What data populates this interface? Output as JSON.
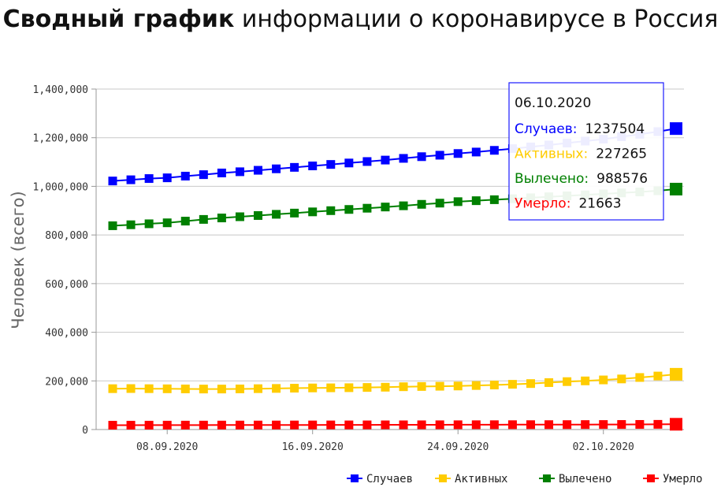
{
  "title_bold": "Сводный график",
  "title_rest": " информации о коронавирусе в Россия",
  "chart_data": {
    "type": "line",
    "ylabel": "Человек (всего)",
    "ylim": [
      0,
      1400000
    ],
    "y_ticks": [
      "0",
      "200,000",
      "400,000",
      "600,000",
      "800,000",
      "1,000,000",
      "1,200,000",
      "1,400,000"
    ],
    "x": [
      "05.09.2020",
      "06.09.2020",
      "07.09.2020",
      "08.09.2020",
      "09.09.2020",
      "10.09.2020",
      "11.09.2020",
      "12.09.2020",
      "13.09.2020",
      "14.09.2020",
      "15.09.2020",
      "16.09.2020",
      "17.09.2020",
      "18.09.2020",
      "19.09.2020",
      "20.09.2020",
      "21.09.2020",
      "22.09.2020",
      "23.09.2020",
      "24.09.2020",
      "25.09.2020",
      "26.09.2020",
      "27.09.2020",
      "28.09.2020",
      "29.09.2020",
      "30.09.2020",
      "01.10.2020",
      "02.10.2020",
      "03.10.2020",
      "04.10.2020",
      "05.10.2020",
      "06.10.2020"
    ],
    "x_tick_labels": [
      "08.09.2020",
      "16.09.2020",
      "24.09.2020",
      "02.10.2020"
    ],
    "series": [
      {
        "name": "Случаев",
        "color": "#0000ff",
        "values": [
          1022000,
          1027000,
          1032000,
          1035000,
          1042000,
          1048000,
          1055000,
          1060000,
          1066000,
          1072000,
          1078000,
          1084000,
          1090000,
          1096000,
          1102000,
          1108000,
          1115000,
          1122000,
          1128000,
          1135000,
          1141000,
          1148000,
          1155000,
          1162000,
          1170000,
          1178000,
          1186000,
          1194000,
          1204000,
          1214000,
          1225000,
          1237504
        ]
      },
      {
        "name": "Активных",
        "color": "#ffcc00",
        "values": [
          168000,
          168500,
          168000,
          167500,
          167000,
          166500,
          166500,
          167000,
          168000,
          169000,
          170000,
          171000,
          171500,
          172000,
          173000,
          174000,
          176000,
          177000,
          178000,
          179000,
          181000,
          183000,
          186000,
          189000,
          193000,
          197000,
          200000,
          204000,
          208000,
          214000,
          220000,
          227265
        ]
      },
      {
        "name": "Вылечено",
        "color": "#008000",
        "values": [
          838000,
          842000,
          846000,
          850000,
          857000,
          864000,
          870000,
          875000,
          880000,
          885000,
          890000,
          895000,
          900000,
          905000,
          910000,
          915000,
          920000,
          926000,
          931000,
          937000,
          941000,
          945000,
          949000,
          953000,
          957000,
          961000,
          965000,
          969000,
          973000,
          977000,
          982000,
          988576
        ]
      },
      {
        "name": "Умерло",
        "color": "#ff0000",
        "values": [
          17800,
          17900,
          18000,
          18100,
          18200,
          18300,
          18400,
          18500,
          18600,
          18700,
          18800,
          18900,
          19000,
          19100,
          19200,
          19300,
          19400,
          19500,
          19600,
          19700,
          19800,
          19900,
          20000,
          20100,
          20200,
          20300,
          20500,
          20700,
          20900,
          21100,
          21400,
          21663
        ]
      }
    ],
    "legend_position": "bottom-right",
    "grid": true
  },
  "tooltip": {
    "date": "06.10.2020",
    "rows": [
      {
        "label": "Случаев:",
        "value": "1237504",
        "color": "#0000ff"
      },
      {
        "label": "Активных:",
        "value": "227265",
        "color": "#ffcc00"
      },
      {
        "label": "Вылечено:",
        "value": "988576",
        "color": "#008000"
      },
      {
        "label": "Умерло:",
        "value": "21663",
        "color": "#ff0000"
      }
    ]
  }
}
